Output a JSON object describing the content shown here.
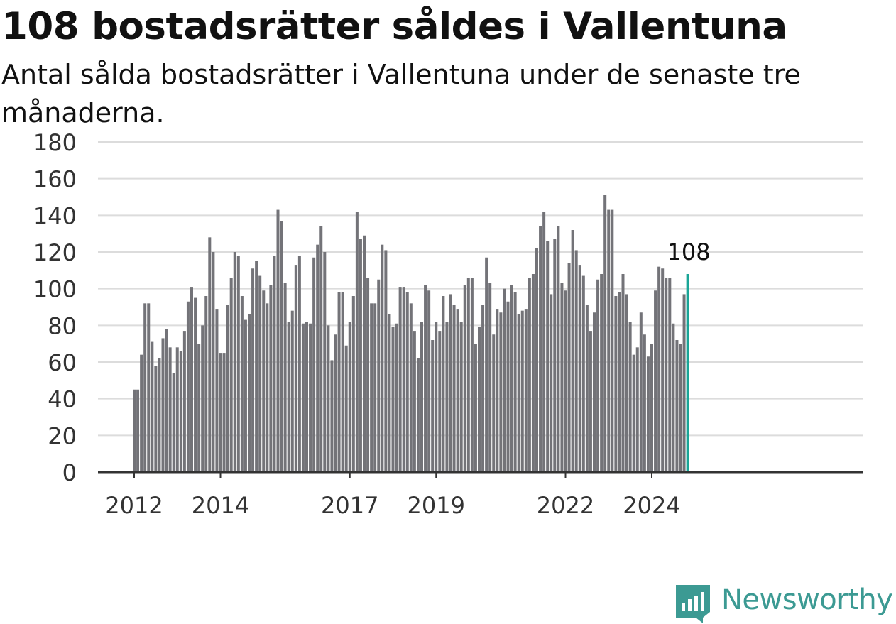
{
  "title": "108 bostadsrätter såldes i Vallentuna",
  "subtitle": "Antal sålda bostadsrätter i Vallentuna under de senaste tre månaderna.",
  "brand": {
    "name": "Newsworthy",
    "color": "#3c9a93",
    "icon": "newsworthy-logo-icon"
  },
  "colors": {
    "bar": "#737378",
    "highlight": "#1aa597",
    "grid": "#dcdcdc",
    "axis": "#333333"
  },
  "chart_data": {
    "type": "bar",
    "title": "108 bostadsrätter såldes i Vallentuna",
    "xlabel": "",
    "ylabel": "",
    "ylim": [
      0,
      180
    ],
    "yticks": [
      0,
      20,
      40,
      60,
      80,
      100,
      120,
      140,
      160,
      180
    ],
    "xticks": [
      {
        "label": "2012",
        "year": 2012
      },
      {
        "label": "2014",
        "year": 2014
      },
      {
        "label": "2017",
        "year": 2017
      },
      {
        "label": "2019",
        "year": 2019
      },
      {
        "label": "2022",
        "year": 2022
      },
      {
        "label": "2024",
        "year": 2024
      }
    ],
    "grid": true,
    "start": "2012-01",
    "highlight_label": "108",
    "series": [
      {
        "values": [
          45,
          45,
          64,
          92,
          92,
          71,
          58,
          62,
          73,
          78,
          68,
          54,
          68,
          66,
          77,
          93,
          101,
          95,
          70,
          80,
          96,
          128,
          120,
          89,
          65,
          65,
          91,
          106,
          120,
          118,
          96,
          83,
          86,
          111,
          115,
          107,
          99,
          92,
          102,
          118,
          143,
          137,
          103,
          82,
          88,
          113,
          118,
          81,
          82,
          81,
          117,
          124,
          134,
          120,
          80,
          61,
          75,
          98,
          98,
          69,
          82,
          96,
          142,
          127,
          129,
          106,
          92,
          92,
          105,
          124,
          121,
          86,
          79,
          81,
          101,
          101,
          98,
          92,
          77,
          62,
          82,
          102,
          99,
          72,
          82,
          77,
          96,
          82,
          97,
          91,
          89,
          82,
          102,
          106,
          106,
          70,
          79,
          91,
          117,
          103,
          75,
          89,
          87,
          100,
          93,
          102,
          98,
          86,
          88,
          89,
          106,
          108,
          122,
          134,
          142,
          126,
          97,
          127,
          134,
          103,
          99,
          114,
          132,
          121,
          113,
          107,
          91,
          77,
          87,
          105,
          108,
          151,
          143,
          143,
          96,
          98,
          108,
          97,
          82,
          64,
          68,
          87,
          75,
          63,
          70,
          99,
          112,
          111,
          106,
          106,
          81,
          72,
          70,
          97,
          108
        ]
      }
    ]
  }
}
